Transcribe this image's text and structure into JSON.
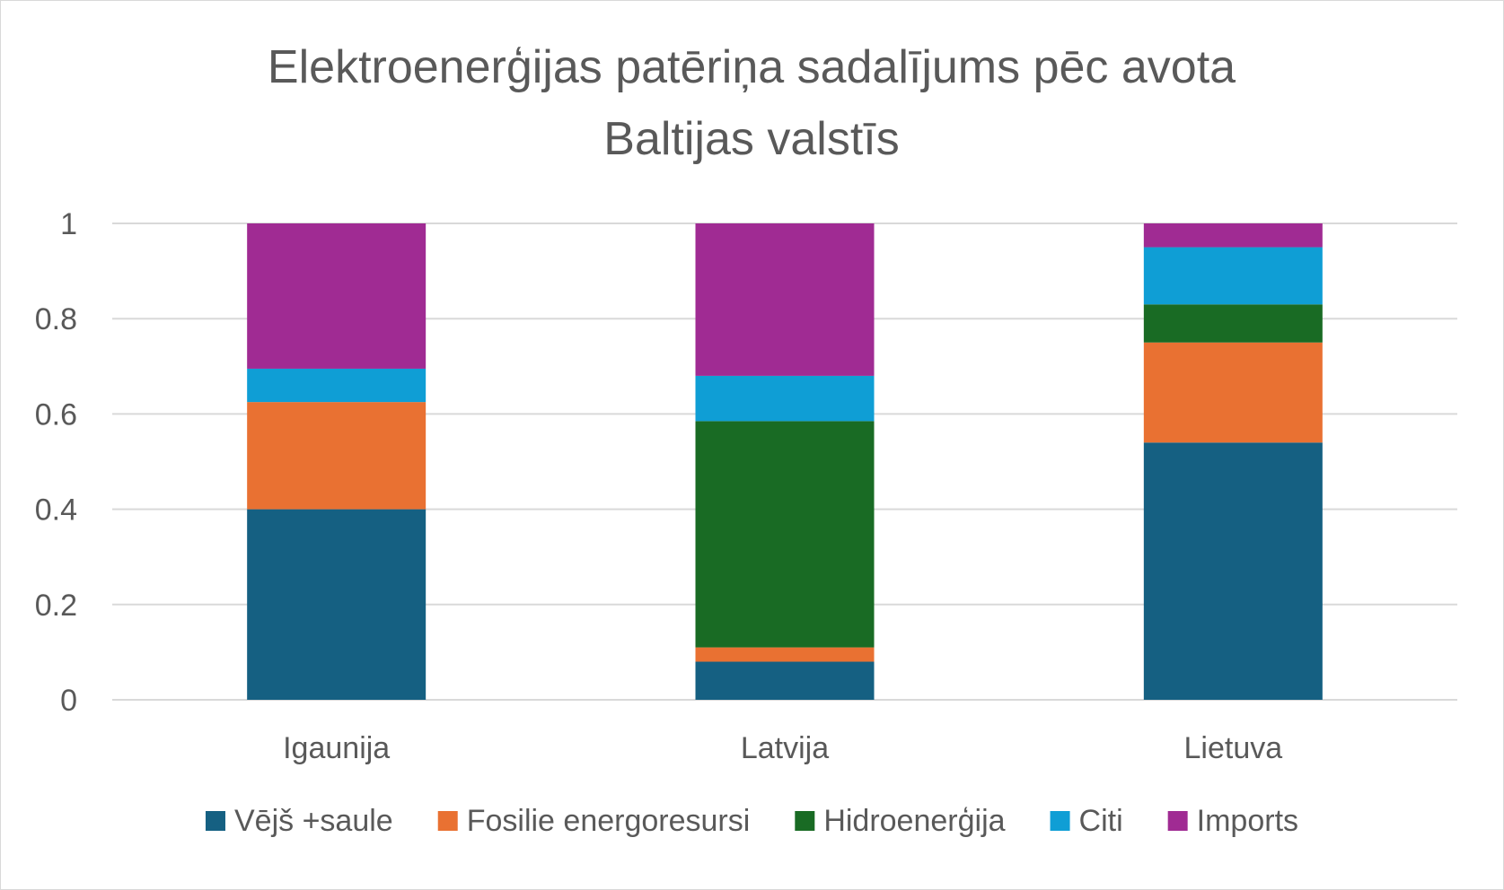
{
  "chart_data": {
    "type": "bar",
    "stacked": true,
    "title_lines": [
      "Elektroenerģijas patēriņa sadalījums pēc avota",
      "Baltijas valstīs"
    ],
    "categories": [
      "Igaunija",
      "Latvija",
      "Lietuva"
    ],
    "ylim": [
      0,
      1
    ],
    "yticks": [
      0,
      0.2,
      0.4,
      0.6,
      0.8,
      1
    ],
    "ytick_labels": [
      "0",
      "0.2",
      "0.4",
      "0.6",
      "0.8",
      "1"
    ],
    "grid": true,
    "legend_position": "bottom",
    "series": [
      {
        "name": "Vējš +saule",
        "color": "#156082",
        "values": [
          0.4,
          0.08,
          0.54
        ]
      },
      {
        "name": "Fosilie energoresursi",
        "color": "#E97132",
        "values": [
          0.225,
          0.03,
          0.21
        ]
      },
      {
        "name": "Hidroenerģija",
        "color": "#196B24",
        "values": [
          0.0,
          0.475,
          0.08
        ]
      },
      {
        "name": "Citi",
        "color": "#0F9ED5",
        "values": [
          0.07,
          0.095,
          0.12
        ]
      },
      {
        "name": "Imports",
        "color": "#A02B93",
        "values": [
          0.305,
          0.32,
          0.05
        ]
      }
    ]
  }
}
